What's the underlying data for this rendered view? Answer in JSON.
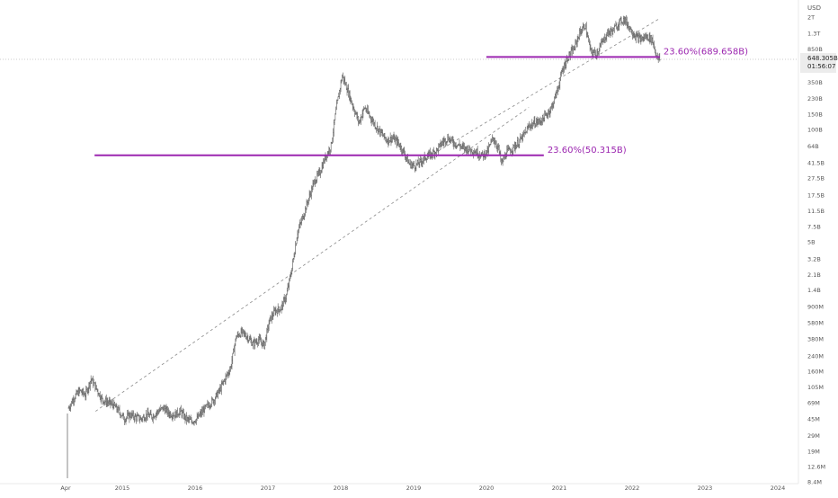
{
  "chart_data": {
    "type": "candlestick",
    "currency": "USD",
    "y_scale": "log",
    "y_range": [
      8400000,
      2600000000000
    ],
    "y_ticks": [
      {
        "label": "2T",
        "value": 2000000000000
      },
      {
        "label": "1.3T",
        "value": 1300000000000
      },
      {
        "label": "850B",
        "value": 850000000000
      },
      {
        "label": "350B",
        "value": 350000000000
      },
      {
        "label": "230B",
        "value": 230000000000
      },
      {
        "label": "150B",
        "value": 150000000000
      },
      {
        "label": "100B",
        "value": 100000000000
      },
      {
        "label": "64B",
        "value": 64000000000
      },
      {
        "label": "41.5B",
        "value": 41500000000
      },
      {
        "label": "27.5B",
        "value": 27500000000
      },
      {
        "label": "17.5B",
        "value": 17500000000
      },
      {
        "label": "11.5B",
        "value": 11500000000
      },
      {
        "label": "7.5B",
        "value": 7500000000
      },
      {
        "label": "5B",
        "value": 5000000000
      },
      {
        "label": "3.2B",
        "value": 3200000000
      },
      {
        "label": "2.1B",
        "value": 2100000000
      },
      {
        "label": "1.4B",
        "value": 1400000000
      },
      {
        "label": "900M",
        "value": 900000000
      },
      {
        "label": "580M",
        "value": 580000000
      },
      {
        "label": "380M",
        "value": 380000000
      },
      {
        "label": "240M",
        "value": 240000000
      },
      {
        "label": "160M",
        "value": 160000000
      },
      {
        "label": "105M",
        "value": 105000000
      },
      {
        "label": "69M",
        "value": 69000000
      },
      {
        "label": "45M",
        "value": 45000000
      },
      {
        "label": "29M",
        "value": 29000000
      },
      {
        "label": "19M",
        "value": 19000000
      },
      {
        "label": "12.6M",
        "value": 12600000
      },
      {
        "label": "8.4M",
        "value": 8400000
      }
    ],
    "x_range": [
      "2014-04-01",
      "2024-04-01"
    ],
    "x_ticks": [
      {
        "label": "Apr",
        "date": "2014-04-01"
      },
      {
        "label": "2015",
        "date": "2015-01-01"
      },
      {
        "label": "2016",
        "date": "2016-01-01"
      },
      {
        "label": "2017",
        "date": "2017-01-01"
      },
      {
        "label": "2018",
        "date": "2018-01-01"
      },
      {
        "label": "2019",
        "date": "2019-01-01"
      },
      {
        "label": "2020",
        "date": "2020-01-01"
      },
      {
        "label": "2021",
        "date": "2021-01-01"
      },
      {
        "label": "2022",
        "date": "2022-01-01"
      },
      {
        "label": "2023",
        "date": "2023-01-01"
      },
      {
        "label": "2024",
        "date": "2024-01-01"
      }
    ],
    "current_price": {
      "label": "648.305B",
      "countdown": "01:56:07",
      "value": 648305000000
    },
    "fib_levels": [
      {
        "label": "23.60%(689.658B)",
        "value": 689658000000,
        "from": "2020-01-01",
        "to": "2022-05-20",
        "color": "#9c27b0"
      },
      {
        "label": "23.60%(50.315B)",
        "value": 50315000000,
        "from": "2014-08-15",
        "to": "2020-10-15",
        "color": "#9c27b0"
      }
    ],
    "trendlines": [
      {
        "from_date": "2014-08-20",
        "from_value": 55000000,
        "to_date": "2020-08-01",
        "to_value": 180000000000
      },
      {
        "from_date": "2019-02-01",
        "from_value": 42000000000,
        "to_date": "2022-05-15",
        "to_value": 1900000000000
      }
    ],
    "weekly_closes": [
      [
        "2014-04-07",
        60000000
      ],
      [
        "2014-05-05",
        80000000
      ],
      [
        "2014-06-02",
        95000000
      ],
      [
        "2014-06-30",
        85000000
      ],
      [
        "2014-07-28",
        130000000
      ],
      [
        "2014-08-25",
        100000000
      ],
      [
        "2014-09-22",
        75000000
      ],
      [
        "2014-10-20",
        70000000
      ],
      [
        "2014-11-17",
        65000000
      ],
      [
        "2014-12-15",
        55000000
      ],
      [
        "2015-01-12",
        45000000
      ],
      [
        "2015-02-09",
        50000000
      ],
      [
        "2015-03-09",
        47000000
      ],
      [
        "2015-04-06",
        45000000
      ],
      [
        "2015-05-04",
        50000000
      ],
      [
        "2015-06-01",
        48000000
      ],
      [
        "2015-06-29",
        55000000
      ],
      [
        "2015-07-27",
        60000000
      ],
      [
        "2015-08-24",
        52000000
      ],
      [
        "2015-09-21",
        50000000
      ],
      [
        "2015-10-19",
        55000000
      ],
      [
        "2015-11-16",
        45000000
      ],
      [
        "2015-12-14",
        42000000
      ],
      [
        "2016-01-11",
        45000000
      ],
      [
        "2016-02-08",
        55000000
      ],
      [
        "2016-03-07",
        65000000
      ],
      [
        "2016-04-04",
        75000000
      ],
      [
        "2016-05-02",
        95000000
      ],
      [
        "2016-05-30",
        130000000
      ],
      [
        "2016-06-27",
        175000000
      ],
      [
        "2016-07-25",
        400000000
      ],
      [
        "2016-08-22",
        450000000
      ],
      [
        "2016-09-19",
        400000000
      ],
      [
        "2016-10-17",
        330000000
      ],
      [
        "2016-11-14",
        370000000
      ],
      [
        "2016-12-12",
        320000000
      ],
      [
        "2017-01-09",
        620000000
      ],
      [
        "2017-02-06",
        800000000
      ],
      [
        "2017-03-06",
        850000000
      ],
      [
        "2017-04-03",
        1200000000
      ],
      [
        "2017-05-01",
        2500000000
      ],
      [
        "2017-05-29",
        6500000000
      ],
      [
        "2017-06-26",
        10000000000
      ],
      [
        "2017-07-24",
        16000000000
      ],
      [
        "2017-08-21",
        25000000000
      ],
      [
        "2017-09-18",
        32000000000
      ],
      [
        "2017-10-16",
        48000000000
      ],
      [
        "2017-11-13",
        65000000000
      ],
      [
        "2017-12-11",
        185000000000
      ],
      [
        "2018-01-08",
        420000000000
      ],
      [
        "2018-02-05",
        280000000000
      ],
      [
        "2018-03-05",
        180000000000
      ],
      [
        "2018-04-02",
        120000000000
      ],
      [
        "2018-04-30",
        180000000000
      ],
      [
        "2018-05-28",
        140000000000
      ],
      [
        "2018-06-25",
        110000000000
      ],
      [
        "2018-07-23",
        90000000000
      ],
      [
        "2018-08-20",
        75000000000
      ],
      [
        "2018-09-17",
        80000000000
      ],
      [
        "2018-10-15",
        70000000000
      ],
      [
        "2018-11-12",
        55000000000
      ],
      [
        "2018-12-10",
        40000000000
      ],
      [
        "2019-01-07",
        38000000000
      ],
      [
        "2019-02-04",
        42000000000
      ],
      [
        "2019-03-04",
        48000000000
      ],
      [
        "2019-04-01",
        52000000000
      ],
      [
        "2019-04-29",
        58000000000
      ],
      [
        "2019-05-27",
        72000000000
      ],
      [
        "2019-06-24",
        80000000000
      ],
      [
        "2019-07-22",
        70000000000
      ],
      [
        "2019-08-19",
        65000000000
      ],
      [
        "2019-09-16",
        60000000000
      ],
      [
        "2019-10-14",
        58000000000
      ],
      [
        "2019-11-11",
        55000000000
      ],
      [
        "2019-12-09",
        50000000000
      ],
      [
        "2020-01-06",
        55000000000
      ],
      [
        "2020-02-03",
        80000000000
      ],
      [
        "2020-03-02",
        60000000000
      ],
      [
        "2020-03-16",
        40000000000
      ],
      [
        "2020-04-13",
        55000000000
      ],
      [
        "2020-05-11",
        60000000000
      ],
      [
        "2020-06-08",
        70000000000
      ],
      [
        "2020-07-06",
        85000000000
      ],
      [
        "2020-08-03",
        110000000000
      ],
      [
        "2020-08-31",
        120000000000
      ],
      [
        "2020-09-28",
        125000000000
      ],
      [
        "2020-10-26",
        145000000000
      ],
      [
        "2020-11-23",
        180000000000
      ],
      [
        "2020-12-21",
        280000000000
      ],
      [
        "2021-01-18",
        500000000000
      ],
      [
        "2021-02-15",
        700000000000
      ],
      [
        "2021-03-15",
        850000000000
      ],
      [
        "2021-04-12",
        1300000000000
      ],
      [
        "2021-05-10",
        1600000000000
      ],
      [
        "2021-06-07",
        800000000000
      ],
      [
        "2021-07-05",
        750000000000
      ],
      [
        "2021-08-02",
        1000000000000
      ],
      [
        "2021-08-30",
        1300000000000
      ],
      [
        "2021-09-27",
        1400000000000
      ],
      [
        "2021-10-25",
        1700000000000
      ],
      [
        "2021-11-22",
        1900000000000
      ],
      [
        "2021-12-20",
        1500000000000
      ],
      [
        "2022-01-17",
        1200000000000
      ],
      [
        "2022-02-14",
        1100000000000
      ],
      [
        "2022-03-14",
        1200000000000
      ],
      [
        "2022-04-11",
        1100000000000
      ],
      [
        "2022-05-09",
        650000000000
      ],
      [
        "2022-05-23",
        648305000000
      ]
    ]
  }
}
